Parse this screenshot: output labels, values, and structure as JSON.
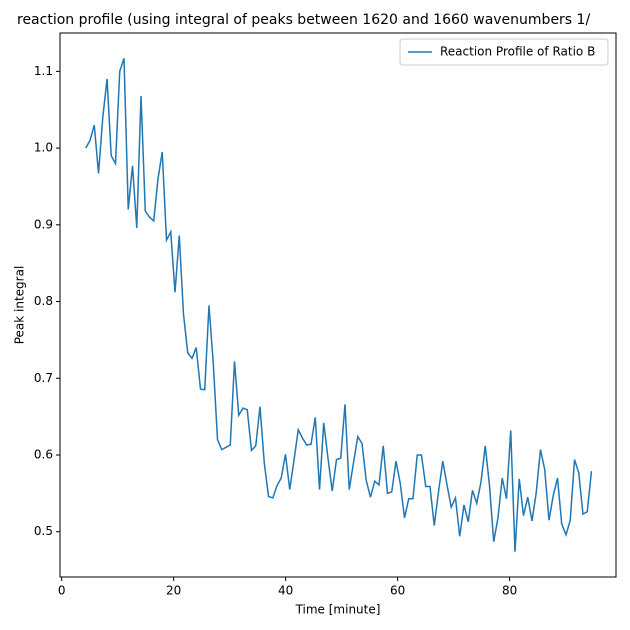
{
  "chart_data": {
    "type": "line",
    "title": "reaction profile (using integral of peaks between 1620 and 1660 wavenumbers 1/",
    "x_label": "Time [minute]",
    "y_label": "Peak integral",
    "legend": "upper right",
    "x": [
      4.3,
      5.06,
      5.82,
      6.58,
      7.34,
      8.1,
      8.85,
      9.61,
      10.37,
      11.13,
      11.89,
      12.65,
      13.41,
      14.17,
      14.93,
      15.69,
      16.44,
      17.2,
      17.96,
      18.72,
      19.48,
      20.24,
      21.0,
      21.76,
      22.52,
      23.28,
      24.03,
      24.79,
      25.55,
      26.31,
      27.07,
      27.83,
      28.59,
      29.35,
      30.11,
      30.87,
      31.62,
      32.38,
      33.14,
      33.9,
      34.66,
      35.42,
      36.18,
      36.94,
      37.7,
      38.46,
      39.21,
      39.97,
      40.73,
      41.49,
      42.25,
      43.01,
      43.77,
      44.53,
      45.29,
      46.05,
      46.8,
      47.56,
      48.32,
      49.08,
      49.84,
      50.6,
      51.36,
      52.12,
      52.88,
      53.64,
      54.39,
      55.15,
      55.91,
      56.67,
      57.43,
      58.19,
      58.95,
      59.71,
      60.47,
      61.23,
      61.98,
      62.74,
      63.5,
      64.26,
      65.02,
      65.78,
      66.54,
      67.3,
      68.06,
      68.82,
      69.57,
      70.33,
      71.09,
      71.85,
      72.61,
      73.37,
      74.13,
      74.89,
      75.65,
      76.41,
      77.16,
      77.92,
      78.68,
      79.44,
      80.2,
      80.96,
      81.72,
      82.48,
      83.24,
      84.0,
      84.75,
      85.51,
      86.27,
      87.03,
      87.79,
      88.55,
      89.31,
      90.07,
      90.83,
      91.59,
      92.34,
      93.1,
      93.86,
      94.62
    ],
    "series": [
      {
        "name": "Reaction Profile of Ratio B",
        "color": "#1f77b4",
        "values": [
          1.0,
          1.01,
          1.03,
          0.967,
          1.04,
          1.09,
          0.99,
          0.98,
          1.1,
          1.117,
          0.92,
          0.977,
          0.896,
          1.068,
          0.918,
          0.91,
          0.905,
          0.96,
          0.995,
          0.88,
          0.891,
          0.812,
          0.886,
          0.783,
          0.733,
          0.726,
          0.74,
          0.686,
          0.685,
          0.795,
          0.72,
          0.62,
          0.607,
          0.61,
          0.613,
          0.722,
          0.652,
          0.661,
          0.659,
          0.606,
          0.612,
          0.663,
          0.59,
          0.546,
          0.544,
          0.56,
          0.57,
          0.601,
          0.555,
          0.593,
          0.633,
          0.622,
          0.613,
          0.614,
          0.649,
          0.555,
          0.642,
          0.596,
          0.553,
          0.594,
          0.596,
          0.666,
          0.555,
          0.59,
          0.624,
          0.615,
          0.567,
          0.545,
          0.566,
          0.561,
          0.612,
          0.55,
          0.552,
          0.592,
          0.563,
          0.518,
          0.543,
          0.543,
          0.6,
          0.6,
          0.559,
          0.559,
          0.508,
          0.552,
          0.592,
          0.561,
          0.532,
          0.544,
          0.494,
          0.535,
          0.513,
          0.554,
          0.537,
          0.565,
          0.612,
          0.56,
          0.487,
          0.518,
          0.57,
          0.543,
          0.632,
          0.474,
          0.569,
          0.521,
          0.545,
          0.514,
          0.551,
          0.607,
          0.581,
          0.515,
          0.547,
          0.57,
          0.51,
          0.496,
          0.515,
          0.594,
          0.577,
          0.523,
          0.526,
          0.579
        ]
      }
    ],
    "xlim": [
      -0.3,
      99
    ],
    "xticks": [
      0,
      20,
      40,
      60,
      80
    ],
    "ylim": [
      0.441,
      1.15
    ],
    "yticks": [
      0.5,
      0.6,
      0.7,
      0.8,
      0.9,
      {
        "value": 1,
        "label": "1.0"
      },
      1.1
    ]
  }
}
